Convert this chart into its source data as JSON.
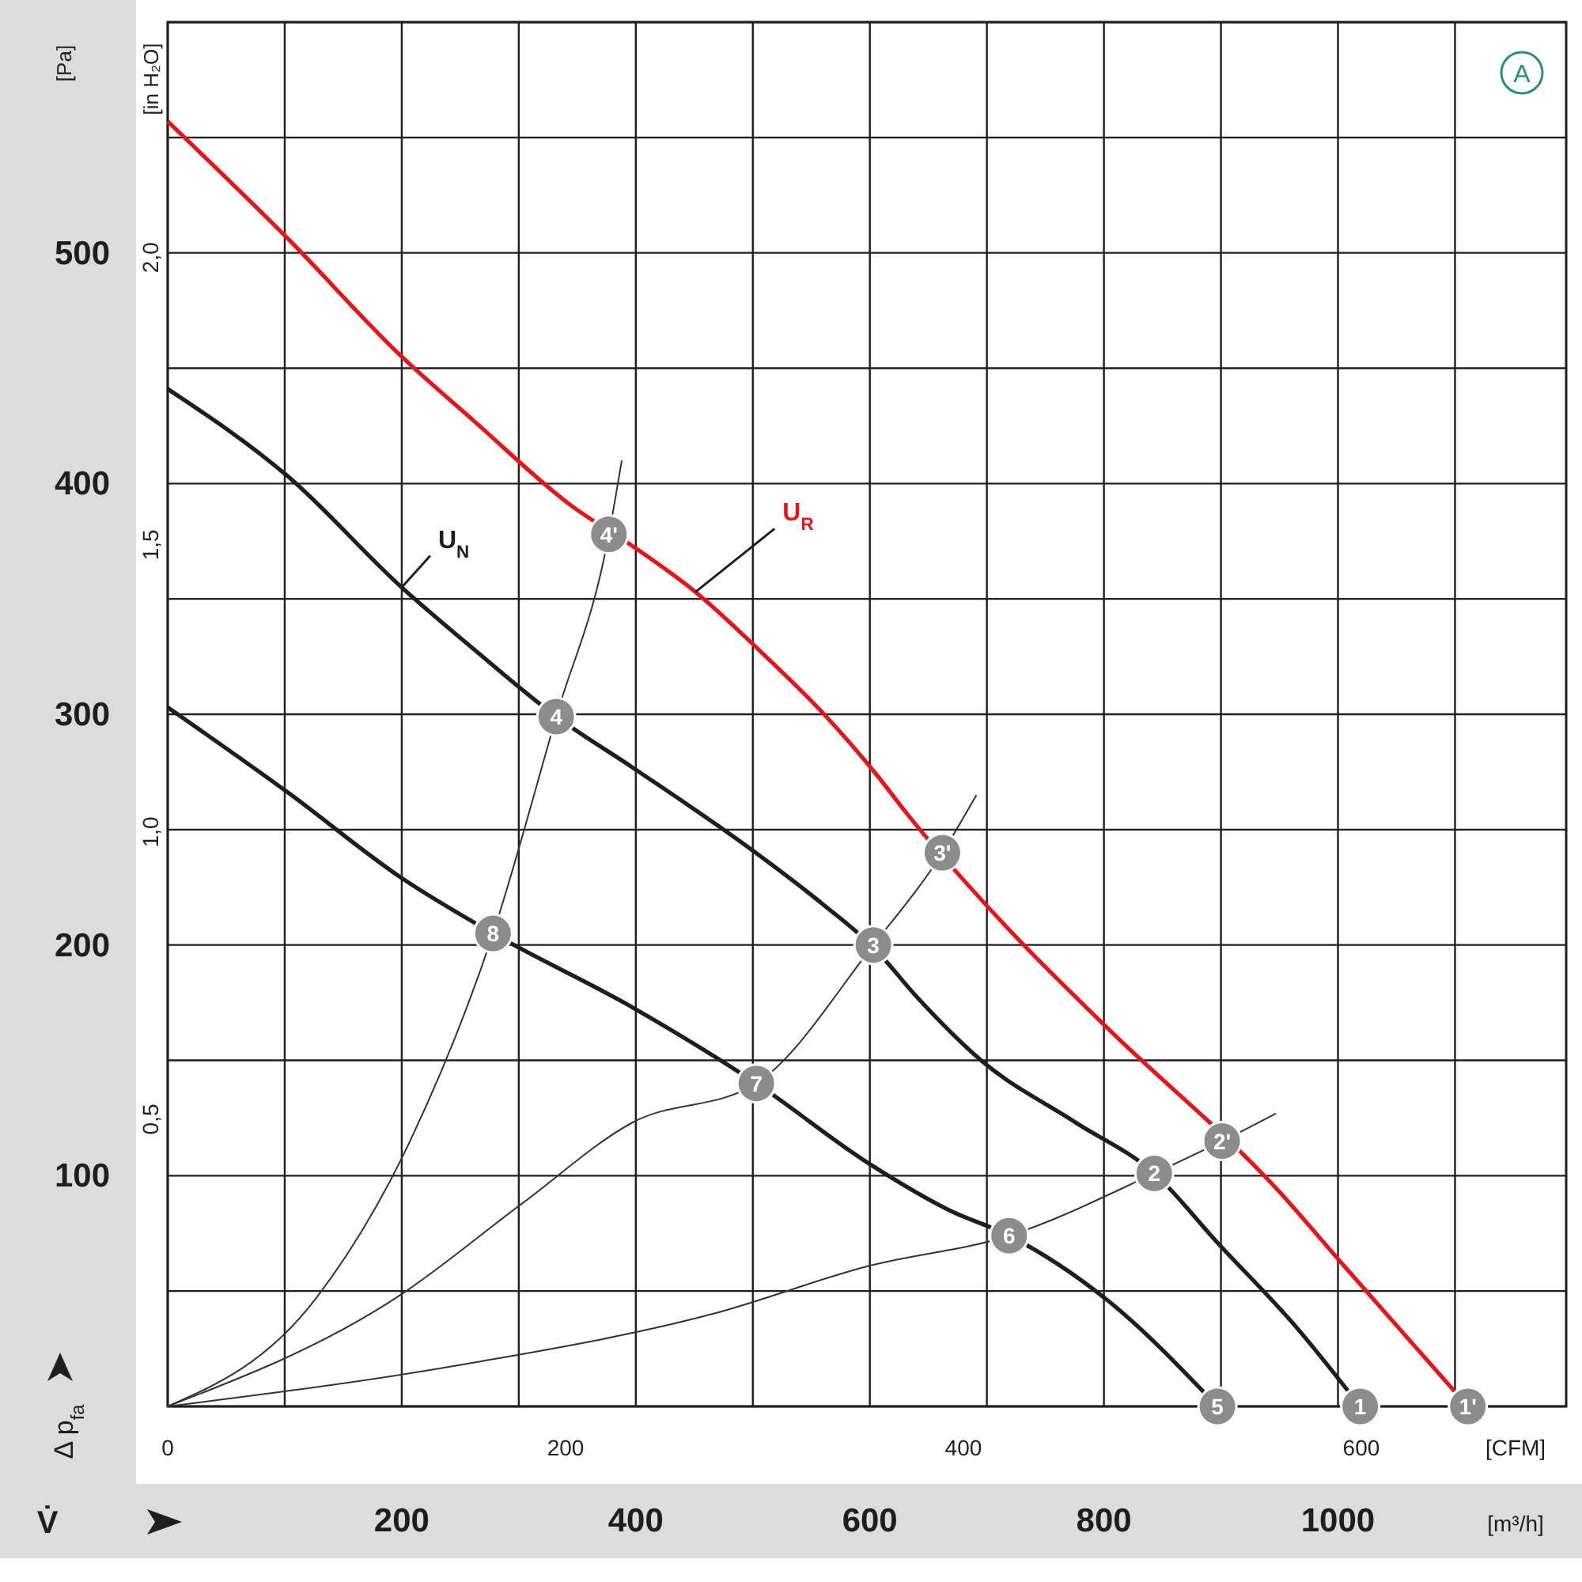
{
  "chart_data": {
    "type": "line",
    "xlabel": "[m³/h]",
    "x2label": "[CFM]",
    "ylabel": "[Pa]",
    "y2label": "[in H₂O]",
    "xlim": [
      0,
      1195
    ],
    "xticks": [
      200,
      400,
      600,
      800,
      1000
    ],
    "x2lim": [
      0,
      703
    ],
    "x2ticks": [
      0,
      200,
      400,
      600
    ],
    "ylim": [
      0,
      600
    ],
    "yticks": [
      100,
      200,
      300,
      400,
      500
    ],
    "y2lim": [
      0,
      2.41
    ],
    "y2ticks": [
      {
        "value": 0.5,
        "label": "0,5"
      },
      {
        "value": 1.0,
        "label": "1,0"
      },
      {
        "value": 1.5,
        "label": "1,5"
      },
      {
        "value": 2.0,
        "label": "2,0"
      }
    ],
    "grid": true,
    "marker": "none",
    "line_style": "solid",
    "series": [
      {
        "name": "U$_{R}$",
        "color": "#e3171b",
        "x": [
          0,
          103,
          200,
          262,
          346,
          397,
          451,
          505,
          559,
          607,
          630,
          722,
          803,
          950,
          1005,
          1111
        ],
        "values": [
          557,
          506,
          455,
          427,
          390,
          373,
          353,
          328,
          301,
          273,
          258,
          205,
          164,
          93,
          61,
          0
        ]
      },
      {
        "name": "U$_{N}$",
        "color": "#1e1e1e",
        "x": [
          0,
          103,
          200,
          262,
          332,
          397,
          497,
          559,
          603,
          641,
          695,
          776,
          843,
          897,
          965,
          1019
        ],
        "values": [
          441,
          403,
          355,
          328,
          299,
          277,
          242,
          218,
          199,
          177,
          150,
          123,
          101,
          71,
          34,
          0
        ]
      },
      {
        "color": "#1e1e1e",
        "x": [
          0,
          103,
          200,
          278,
          397,
          503,
          600,
          668,
          719,
          803,
          897
        ],
        "values": [
          303,
          266,
          229,
          205,
          173,
          140,
          105,
          85,
          74,
          46,
          0
        ]
      },
      {
        "color": "#333333",
        "x": [
          0,
          127,
          208,
          278,
          332,
          377,
          388
        ],
        "values": [
          0,
          47,
          116,
          205,
          299,
          378,
          410
        ]
      },
      {
        "color": "#333333",
        "x": [
          0,
          195,
          303,
          397,
          503,
          603,
          662,
          691
        ],
        "values": [
          0,
          47,
          88,
          123,
          140,
          200,
          240,
          265
        ]
      },
      {
        "color": "#333333",
        "x": [
          0,
          262,
          465,
          600,
          719,
          843,
          901,
          947
        ],
        "values": [
          0,
          19,
          40,
          61,
          74,
          101,
          115,
          127
        ]
      }
    ],
    "annotations": [
      "Δ p$_{fa}$",
      "V̇",
      "A",
      {
        "text": "1'",
        "x": 1111,
        "y": 0
      },
      {
        "text": "2'",
        "x": 901,
        "y": 115
      },
      {
        "text": "3'",
        "x": 662,
        "y": 240
      },
      {
        "text": "4'",
        "x": 377,
        "y": 378
      },
      {
        "text": "1",
        "x": 1019,
        "y": 0
      },
      {
        "text": "2",
        "x": 843,
        "y": 101
      },
      {
        "text": "3",
        "x": 603,
        "y": 200
      },
      {
        "text": "4",
        "x": 332,
        "y": 299
      },
      {
        "text": "5",
        "x": 897,
        "y": 0
      },
      {
        "text": "6",
        "x": 719,
        "y": 74
      },
      {
        "text": "7",
        "x": 503,
        "y": 140
      },
      {
        "text": "8",
        "x": 278,
        "y": 205
      }
    ]
  }
}
